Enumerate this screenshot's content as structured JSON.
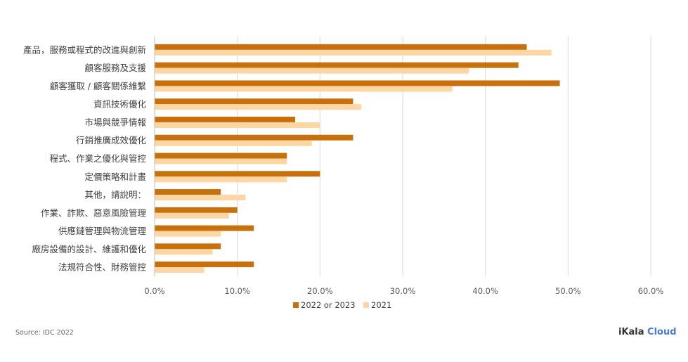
{
  "chart_data": {
    "type": "bar",
    "orientation": "horizontal",
    "categories": [
      "產品，服務或程式的改進與創新",
      "顧客服務及支援",
      "顧客獲取 / 顧客關係維繫",
      "資訊技術優化",
      "市場與競爭情報",
      "行銷推廣成效優化",
      "程式、作業之優化與管控",
      "定價策略和計畫",
      "其他，請說明：",
      "作業、詐欺、惡意風險管理",
      "供應鏈管理與物流管理",
      "廠房設備的設計、維護和優化",
      "法規符合性、財務管控"
    ],
    "series": [
      {
        "name": "2022 or 2023",
        "color": "#c8700b",
        "values": [
          45,
          44,
          49,
          24,
          17,
          24,
          16,
          20,
          8,
          10,
          12,
          8,
          12
        ]
      },
      {
        "name": "2021",
        "color": "#fdd6a3",
        "values": [
          48,
          38,
          36,
          25,
          20,
          19,
          16,
          16,
          11,
          9,
          8,
          7,
          6
        ]
      }
    ],
    "xlim": [
      0,
      60
    ],
    "x_ticks": [
      "0.0%",
      "10.0%",
      "20.0%",
      "30.0%",
      "40.0%",
      "50.0%",
      "60.0%"
    ],
    "grid": true,
    "legend_position": "bottom"
  },
  "footer": {
    "source": "Source: IDC 2022",
    "brand_part1": "iKala",
    "brand_part2": " Cloud"
  }
}
